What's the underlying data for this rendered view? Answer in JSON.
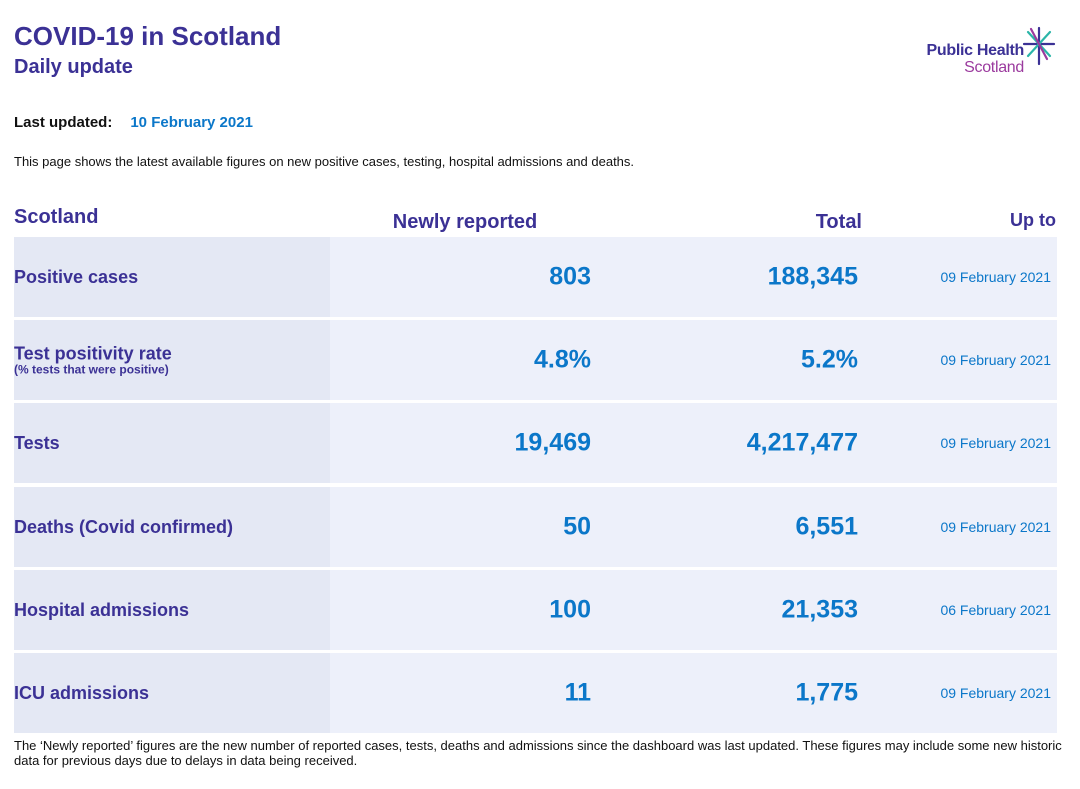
{
  "header": {
    "title": "COVID-19 in Scotland",
    "subtitle": "Daily update",
    "logo": {
      "line1": "Public Health",
      "line2": "Scotland",
      "primary_color": "#3b3195",
      "secondary_color": "#9b3a9e",
      "star_color": "#2bb5a8"
    }
  },
  "last_updated": {
    "label": "Last updated:",
    "value": "10 February 2021"
  },
  "intro": "This page shows the latest available figures on new positive cases, testing, hospital admissions and deaths.",
  "table": {
    "headers": {
      "region": "Scotland",
      "newly_reported": "Newly reported",
      "total": "Total",
      "up_to": "Up to"
    },
    "rows": [
      {
        "label": "Positive cases",
        "sublabel": "",
        "newly": "803",
        "total": "188,345",
        "up_to": "09 February 2021"
      },
      {
        "label": "Test positivity rate",
        "sublabel": "(% tests that were positive)",
        "newly": "4.8%",
        "total": "5.2%",
        "up_to": "09 February 2021"
      },
      {
        "label": "Tests",
        "sublabel": "",
        "newly": "19,469",
        "total": "4,217,477",
        "up_to": "09 February 2021"
      },
      {
        "label": "Deaths (Covid confirmed)",
        "sublabel": "",
        "newly": "50",
        "total": "6,551",
        "up_to": "09 February 2021"
      },
      {
        "label": "Hospital admissions",
        "sublabel": "",
        "newly": "100",
        "total": "21,353",
        "up_to": "06 February 2021"
      },
      {
        "label": "ICU admissions",
        "sublabel": "",
        "newly": "11",
        "total": "1,775",
        "up_to": "09 February 2021"
      }
    ]
  },
  "footnote": "The ‘Newly reported’ figures are the new number of reported cases, tests, deaths and admissions since the dashboard was last updated. These figures may include some new historic data for previous days due to delays in data being received.",
  "colors": {
    "heading": "#3b3195",
    "value": "#0b77c9",
    "row_bg": "#edf0fa",
    "label_bg": "#e4e8f4"
  }
}
